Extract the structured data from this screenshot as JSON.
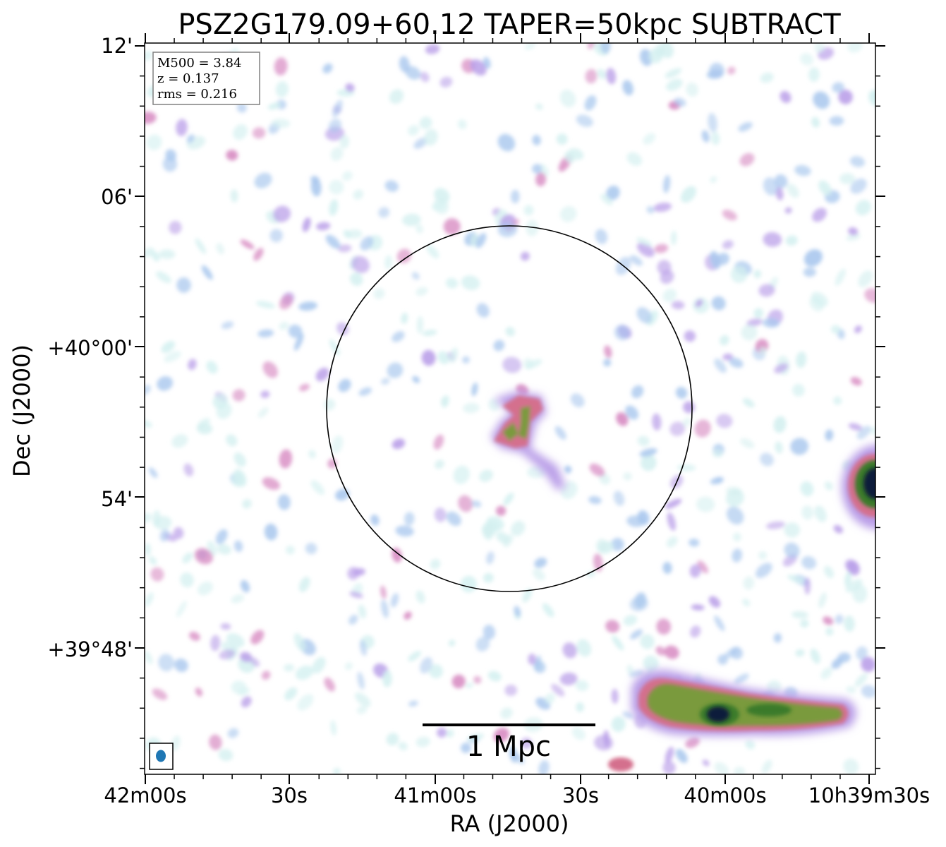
{
  "title": "PSZ2G179.09+60.12 TAPER=50kpc SUBTRACT",
  "info_box": [
    "M500 = 3.84",
    "z = 0.137",
    "rms = 0.216"
  ],
  "axes": {
    "xlabel": "RA (J2000)",
    "ylabel": "Dec (J2000)",
    "x_ticks": [
      "42m00s",
      "30s",
      "41m00s",
      "30s",
      "40m00s",
      "10h39m30s"
    ],
    "y_ticks": [
      "12'",
      "06'",
      "+40°00'",
      "54'",
      "+39°48'"
    ]
  },
  "scalebar_label": "1 Mpc",
  "beam": {
    "color": "#1f77b4"
  },
  "colormap": [
    "#ffffff",
    "#d4f0f0",
    "#aac8ee",
    "#b99ee8",
    "#d687c0",
    "#d4708d",
    "#7a9a3c",
    "#3a7a2a",
    "#0a1a3a"
  ]
}
